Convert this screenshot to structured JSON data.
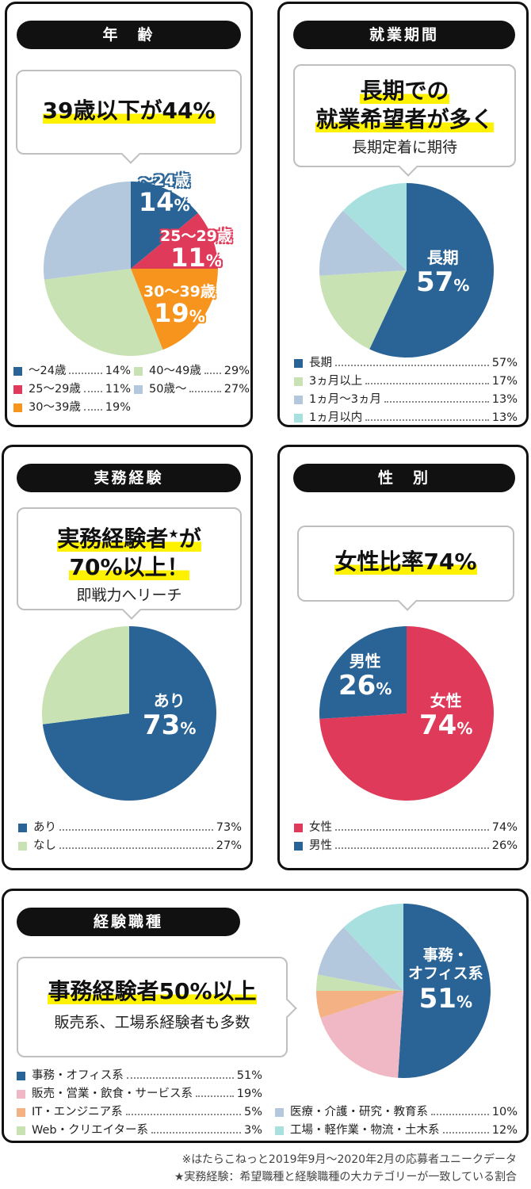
{
  "age": {
    "pill": "年　齢",
    "headline": "39歳以下が44%",
    "chart_data": {
      "type": "pie",
      "slices": [
        {
          "name": "〜24歳",
          "value": 14,
          "color": "#2a6496"
        },
        {
          "name": "25〜29歳",
          "value": 11,
          "color": "#e03a5a"
        },
        {
          "name": "30〜39歳",
          "value": 19,
          "color": "#f7941d"
        },
        {
          "name": "40〜49歳",
          "value": 29,
          "color": "#c8e2b4"
        },
        {
          "name": "50歳〜",
          "value": 27,
          "color": "#b3c8dc"
        }
      ]
    },
    "labels": [
      {
        "name": "〜24歳",
        "pct": "14",
        "unit": "%"
      },
      {
        "name": "25〜29歳",
        "pct": "11",
        "unit": "%"
      },
      {
        "name": "30〜39歳",
        "pct": "19",
        "unit": "%"
      }
    ],
    "legend": [
      {
        "text": "〜24歳",
        "value": "14%",
        "color": "#2a6496"
      },
      {
        "text": "40〜49歳",
        "value": "29%",
        "color": "#c8e2b4"
      },
      {
        "text": "25〜29歳",
        "value": "11%",
        "color": "#e03a5a"
      },
      {
        "text": "50歳〜",
        "value": "27%",
        "color": "#b3c8dc"
      },
      {
        "text": "30〜39歳",
        "value": "19%",
        "color": "#f7941d"
      }
    ]
  },
  "period": {
    "pill": "就業期間",
    "headline1": "長期での",
    "headline2": "就業希望者が多く",
    "sub": "長期定着に期待",
    "chart_data": {
      "type": "pie",
      "slices": [
        {
          "name": "長期",
          "value": 57,
          "color": "#2a6496"
        },
        {
          "name": "3ヵ月以上",
          "value": 17,
          "color": "#c8e2b4"
        },
        {
          "name": "1ヵ月〜3ヵ月",
          "value": 13,
          "color": "#b3c8dc"
        },
        {
          "name": "1ヵ月以内",
          "value": 13,
          "color": "#a8e0e0"
        }
      ]
    },
    "label": {
      "name": "長期",
      "pct": "57",
      "unit": "%"
    },
    "legend": [
      {
        "text": "長期",
        "value": "57%",
        "color": "#2a6496"
      },
      {
        "text": "3ヵ月以上",
        "value": "17%",
        "color": "#c8e2b4"
      },
      {
        "text": "1ヵ月〜3ヵ月",
        "value": "13%",
        "color": "#b3c8dc"
      },
      {
        "text": "1ヵ月以内",
        "value": "13%",
        "color": "#a8e0e0"
      }
    ]
  },
  "experience": {
    "pill": "実務経験",
    "headline1": "実務経験者",
    "star": "★",
    "headline1b": "が",
    "headline2": "70%以上！",
    "sub": "即戦力へリーチ",
    "chart_data": {
      "type": "pie",
      "slices": [
        {
          "name": "あり",
          "value": 73,
          "color": "#2a6496"
        },
        {
          "name": "なし",
          "value": 27,
          "color": "#c8e2b4"
        }
      ]
    },
    "label": {
      "name": "あり",
      "pct": "73",
      "unit": "%"
    },
    "legend": [
      {
        "text": "あり",
        "value": "73%",
        "color": "#2a6496"
      },
      {
        "text": "なし",
        "value": "27%",
        "color": "#c8e2b4"
      }
    ]
  },
  "gender": {
    "pill": "性　別",
    "headline": "女性比率74%",
    "chart_data": {
      "type": "pie",
      "slices": [
        {
          "name": "女性",
          "value": 74,
          "color": "#e03a5a"
        },
        {
          "name": "男性",
          "value": 26,
          "color": "#2a6496"
        }
      ]
    },
    "labels": [
      {
        "name": "男性",
        "pct": "26",
        "unit": "%"
      },
      {
        "name": "女性",
        "pct": "74",
        "unit": "%"
      }
    ],
    "legend": [
      {
        "text": "女性",
        "value": "74%",
        "color": "#e03a5a"
      },
      {
        "text": "男性",
        "value": "26%",
        "color": "#2a6496"
      }
    ]
  },
  "job": {
    "pill": "経験職種",
    "headline": "事務経験者50%以上",
    "sub": "販売系、工場系経験者も多数",
    "chart_data": {
      "type": "pie",
      "slices": [
        {
          "name": "事務・オフィス系",
          "value": 51,
          "color": "#2a6496"
        },
        {
          "name": "販売・営業・飲食・サービス系",
          "value": 19,
          "color": "#f0b8c4"
        },
        {
          "name": "IT・エンジニア系",
          "value": 5,
          "color": "#f4b183"
        },
        {
          "name": "Web・クリエイター系",
          "value": 3,
          "color": "#c8e2b4"
        },
        {
          "name": "医療・介護・研究・教育系",
          "value": 10,
          "color": "#b3c8dc"
        },
        {
          "name": "工場・軽作業・物流・土木系",
          "value": 12,
          "color": "#a8e0e0"
        }
      ]
    },
    "label": {
      "name1": "事務・",
      "name2": "オフィス系",
      "pct": "51",
      "unit": "%"
    },
    "legend_left": [
      {
        "text": "事務・オフィス系",
        "value": "51%",
        "color": "#2a6496"
      },
      {
        "text": "販売・営業・飲食・サービス系",
        "value": "19%",
        "color": "#f0b8c4"
      },
      {
        "text": "IT・エンジニア系",
        "value": "5%",
        "color": "#f4b183"
      },
      {
        "text": "Web・クリエイター系",
        "value": "3%",
        "color": "#c8e2b4"
      }
    ],
    "legend_right": [
      {
        "text": "医療・介護・研究・教育系",
        "value": "10%",
        "color": "#b3c8dc"
      },
      {
        "text": "工場・軽作業・物流・土木系",
        "value": "12%",
        "color": "#a8e0e0"
      }
    ]
  },
  "footnotes": [
    "※はたらこねっと2019年9月〜2020年2月の応募者ユニークデータ",
    "★実務経験：希望職種と経験職種の大カテゴリーが一致している割合"
  ]
}
